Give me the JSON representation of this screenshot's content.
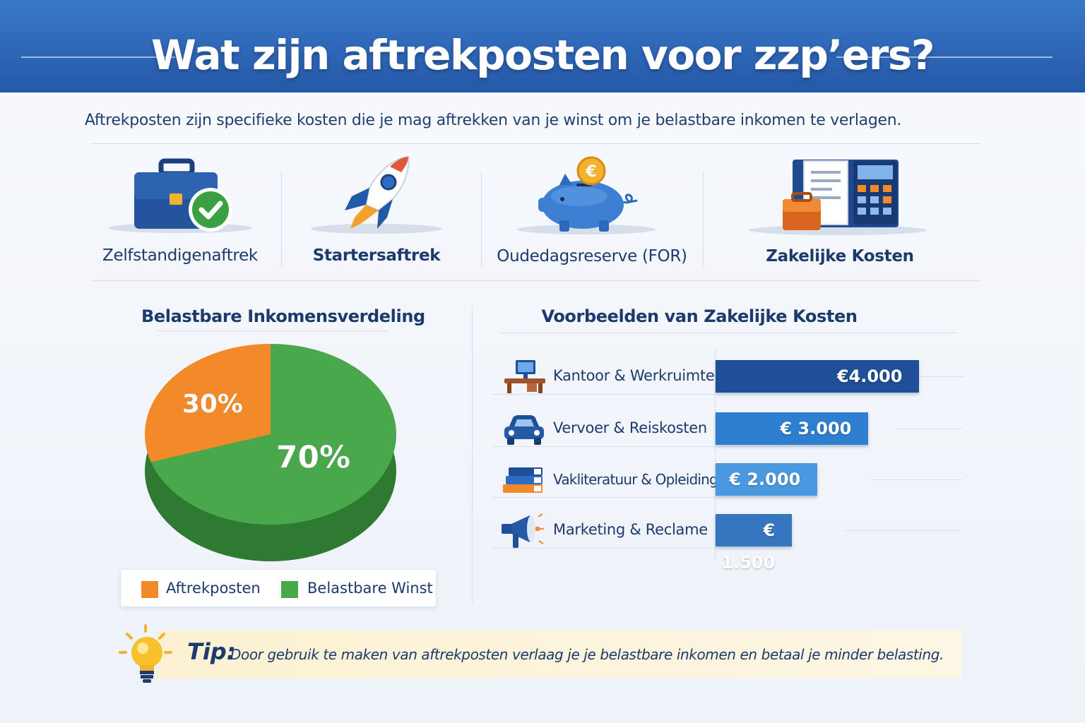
{
  "title": "Wat zijn aftrekposten voor zzp’ers?",
  "intro": "Aftrekposten zijn specifieke kosten die je mag aftrekken van je winst om je belastbare inkomen te verlagen.",
  "categories": [
    {
      "label": "Zelfstandigenaftrek",
      "icon": "briefcase-check-icon"
    },
    {
      "label": "Startersaftrek",
      "icon": "rocket-icon"
    },
    {
      "label": "Oudedagsreserve (FOR)",
      "icon": "piggy-bank-icon"
    },
    {
      "label": "Zakelijke Kosten",
      "icon": "calculator-receipt-icon"
    }
  ],
  "colors": {
    "orange": "#f28a2a",
    "green": "#4aa84c",
    "darkgreen": "#2e7a33",
    "bar1": "#1f4f98",
    "bar2": "#2e7fd0",
    "bar3": "#4a98e0",
    "bar4": "#3675c0"
  },
  "chart_data": [
    {
      "type": "pie",
      "title": "Belastbare Inkomensverdeling",
      "slices": [
        {
          "name": "Aftrekposten",
          "value": 30,
          "label": "30%",
          "color": "#f28a2a"
        },
        {
          "name": "Belastbare Winst",
          "value": 70,
          "label": "70%",
          "color": "#4aa84c"
        }
      ],
      "legend": [
        "Aftrekposten",
        "Belastbare Winst"
      ],
      "legend_placement": "bottom"
    },
    {
      "type": "bar",
      "orientation": "horizontal",
      "title": "Voorbeelden van Zakelijke Kosten",
      "categories": [
        "Kantoor & Werkruimte",
        "Vervoer & Reiskosten",
        "Vakliteratuur & Opleidingen",
        "Marketing & Reclame"
      ],
      "icons": [
        "desk-computer-icon",
        "car-icon",
        "books-icon",
        "megaphone-icon"
      ],
      "values": [
        4000,
        3000,
        2000,
        1500
      ],
      "value_labels": [
        "€4.000",
        "€ 3.000",
        "€ 2.000",
        "€ 1.500"
      ],
      "xlim": [
        0,
        5200
      ]
    }
  ],
  "tip": {
    "label": "Tip:",
    "text": "Door gebruik te maken van aftrekposten verlaag je je belastbare inkomen en betaal je minder belasting."
  }
}
